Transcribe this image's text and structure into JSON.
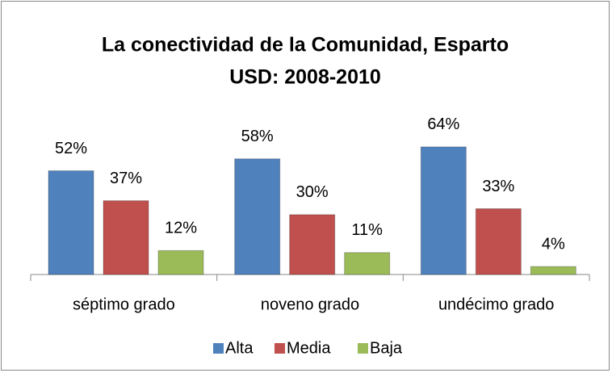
{
  "chart_data": {
    "type": "bar",
    "title": [
      "La conectividad de la Comunidad, Esparto",
      "USD: 2008-2010"
    ],
    "categories": [
      "séptimo grado",
      "noveno grado",
      "undécimo grado"
    ],
    "series": [
      {
        "name": "Alta",
        "color": "#4f81bd",
        "values": [
          52,
          58,
          64
        ],
        "value_labels": [
          "52%",
          "58%",
          "64%"
        ]
      },
      {
        "name": "Media",
        "color": "#c0504d",
        "values": [
          37,
          30,
          33
        ],
        "value_labels": [
          "37%",
          "30%",
          "33%"
        ]
      },
      {
        "name": "Baja",
        "color": "#9bbb59",
        "values": [
          12,
          11,
          4
        ],
        "value_labels": [
          "12%",
          "11%",
          "4%"
        ]
      }
    ],
    "legend": "bottom"
  }
}
